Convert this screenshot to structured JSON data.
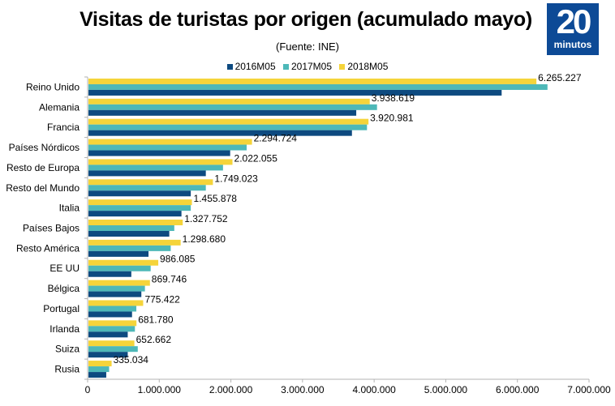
{
  "logo": {
    "number": "20",
    "word": "minutos",
    "color": "#0d4a96"
  },
  "chart_data": {
    "type": "bar",
    "orientation": "horizontal",
    "title": "Visitas de turistas por origen (acumulado mayo)",
    "subtitle": "(Fuente: INE)",
    "xlabel": "",
    "ylabel": "",
    "xlim": [
      0,
      7000000
    ],
    "x_ticks": [
      0,
      1000000,
      2000000,
      3000000,
      4000000,
      5000000,
      6000000,
      7000000
    ],
    "x_tick_labels": [
      "0",
      "1.000.000",
      "2.000.000",
      "3.000.000",
      "4.000.000",
      "5.000.000",
      "6.000.000",
      "7.000.000"
    ],
    "legend_position": "top",
    "grid": false,
    "categories": [
      "Reino Unido",
      "Alemania",
      "Francia",
      "Países Nórdicos",
      "Resto de Europa",
      "Resto del Mundo",
      "Italia",
      "Países Bajos",
      "Resto América",
      "EE UU",
      "Bélgica",
      "Portugal",
      "Irlanda",
      "Suiza",
      "Rusia"
    ],
    "series": [
      {
        "name": "2016M05",
        "color": "#0d4a80",
        "values": [
          5780000,
          3750000,
          3690000,
          1990000,
          1650000,
          1440000,
          1310000,
          1140000,
          850000,
          610000,
          750000,
          620000,
          560000,
          560000,
          260000
        ]
      },
      {
        "name": "2017M05",
        "color": "#4db8b8",
        "values": [
          6420000,
          4040000,
          3900000,
          2220000,
          1890000,
          1650000,
          1440000,
          1210000,
          1160000,
          880000,
          800000,
          680000,
          660000,
          700000,
          300000
        ]
      },
      {
        "name": "2018M05",
        "color": "#f5d43a",
        "values": [
          6265227,
          3938619,
          3920981,
          2294724,
          2022055,
          1749023,
          1455878,
          1327752,
          1298680,
          986085,
          869746,
          775422,
          681780,
          652662,
          335034
        ]
      }
    ],
    "data_labels": [
      "6.265.227",
      "3.938.619",
      "3.920.981",
      "2.294.724",
      "2.022.055",
      "1.749.023",
      "1.455.878",
      "1.327.752",
      "1.298.680",
      "986.085",
      "869.746",
      "775.422",
      "681.780",
      "652.662",
      "335.034"
    ],
    "data_labels_series": "2018M05"
  }
}
